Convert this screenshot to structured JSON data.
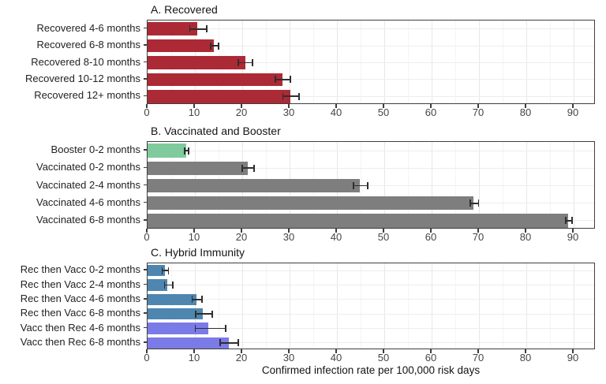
{
  "figure": {
    "xlabel": "Confirmed infection rate per 100,000 risk days",
    "background": "#ffffff",
    "panel_border_color": "#3e3e3e",
    "grid_major_color": "#e7e7e7",
    "grid_minor_color": "#f4f4f4",
    "errorbar_color": "#2e2e2e",
    "title_color": "#141414",
    "label_color": "#222222",
    "tick_label_color": "#454545"
  },
  "chart_data": [
    {
      "type": "bar",
      "orientation": "horizontal",
      "title": "A. Recovered",
      "xlabel": "",
      "xlim": [
        0,
        94.7
      ],
      "xticks": [
        0,
        10,
        20,
        30,
        40,
        50,
        60,
        70,
        80,
        90
      ],
      "grid": true,
      "categories": [
        "Recovered 4-6 months",
        "Recovered 6-8 months",
        "Recovered 8-10 months",
        "Recovered 10-12 months",
        "Recovered 12+ months"
      ],
      "values": [
        10.5,
        14.0,
        20.6,
        28.5,
        30.2
      ],
      "error_low": [
        8.9,
        13.3,
        19.2,
        27.0,
        28.6
      ],
      "error_high": [
        12.5,
        15.0,
        22.2,
        30.2,
        32.0
      ],
      "bar_colors": [
        "#AC2A35",
        "#AC2A35",
        "#AC2A35",
        "#AC2A35",
        "#AC2A35"
      ]
    },
    {
      "type": "bar",
      "orientation": "horizontal",
      "title": "B. Vaccinated and Booster",
      "xlabel": "",
      "xlim": [
        0,
        94.7
      ],
      "xticks": [
        0,
        10,
        20,
        30,
        40,
        50,
        60,
        70,
        80,
        90
      ],
      "grid": true,
      "categories": [
        "Booster 0-2 months",
        "Vaccinated 0-2 months",
        "Vaccinated 2-4 months",
        "Vaccinated 4-6 months",
        "Vaccinated 6-8 months"
      ],
      "values": [
        8.2,
        21.1,
        44.9,
        68.9,
        88.9
      ],
      "error_low": [
        7.8,
        20.0,
        43.5,
        68.2,
        88.3
      ],
      "error_high": [
        8.7,
        22.5,
        46.5,
        69.9,
        89.7
      ],
      "bar_colors": [
        "#7FCB9D",
        "#7E7E7E",
        "#7E7E7E",
        "#7E7E7E",
        "#7E7E7E"
      ]
    },
    {
      "type": "bar",
      "orientation": "horizontal",
      "title": "C. Hybrid Immunity",
      "xlabel": "Confirmed infection rate per 100,000 risk days",
      "xlim": [
        0,
        94.7
      ],
      "xticks": [
        0,
        10,
        20,
        30,
        40,
        50,
        60,
        70,
        80,
        90
      ],
      "grid": true,
      "categories": [
        "Rec then Vacc 0-2 months",
        "Rec then Vacc 2-4 months",
        "Rec then Vacc 4-6 months",
        "Rec then Vacc 6-8 months",
        "Vacc then Rec 4-6 months",
        "Vacc then Rec 6-8 months"
      ],
      "values": [
        3.7,
        4.2,
        10.3,
        11.6,
        12.8,
        17.2
      ],
      "error_low": [
        3.1,
        3.6,
        9.4,
        10.2,
        10.1,
        15.3
      ],
      "error_high": [
        4.4,
        5.3,
        11.5,
        13.7,
        16.5,
        19.2
      ],
      "bar_colors": [
        "#4E86B0",
        "#4E86B0",
        "#4E86B0",
        "#4E86B0",
        "#7B7BE8",
        "#7B7BE8"
      ]
    }
  ]
}
